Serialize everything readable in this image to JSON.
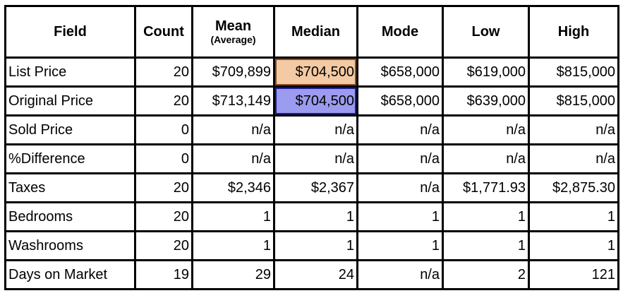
{
  "chart_data": {
    "type": "table",
    "title": "",
    "columns": [
      "Field",
      "Count",
      "Mean (Average)",
      "Median",
      "Mode",
      "Low",
      "High"
    ],
    "rows": [
      [
        "List Price",
        "20",
        "$709,899",
        "$704,500",
        "$658,000",
        "$619,000",
        "$815,000"
      ],
      [
        "Original Price",
        "20",
        "$713,149",
        "$704,500",
        "$658,000",
        "$639,000",
        "$815,000"
      ],
      [
        "Sold Price",
        "0",
        "n/a",
        "n/a",
        "n/a",
        "n/a",
        "n/a"
      ],
      [
        "%Difference",
        "0",
        "n/a",
        "n/a",
        "n/a",
        "n/a",
        "n/a"
      ],
      [
        "Taxes",
        "20",
        "$2,346",
        "$2,367",
        "n/a",
        "$1,771.93",
        "$2,875.30"
      ],
      [
        "Bedrooms",
        "20",
        "1",
        "1",
        "1",
        "1",
        "1"
      ],
      [
        "Washrooms",
        "20",
        "1",
        "1",
        "1",
        "1",
        "1"
      ],
      [
        "Days on Market",
        "19",
        "29",
        "24",
        "n/a",
        "2",
        "121"
      ]
    ],
    "highlights": [
      {
        "row": "List Price",
        "column": "Median",
        "fill": "#f3caa3",
        "border": "#8a4a20"
      },
      {
        "row": "Original Price",
        "column": "Median",
        "fill": "#9b9bef",
        "border": "#1c1c96"
      }
    ]
  },
  "header": {
    "field": "Field",
    "count": "Count",
    "mean": "Mean",
    "mean_sub": "(Average)",
    "median": "Median",
    "mode": "Mode",
    "low": "Low",
    "high": "High"
  },
  "colors": {
    "grid_border": "#000000",
    "text": "#000000",
    "background": "#ffffff",
    "median_list_price_fill": "#f3caa3",
    "median_list_price_border": "#8a4a20",
    "median_original_price_fill": "#9b9bef",
    "median_original_price_border": "#1c1c96"
  }
}
